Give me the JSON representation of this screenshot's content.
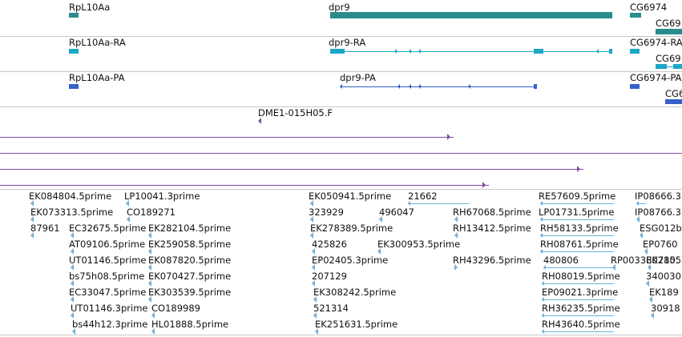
{
  "colors": {
    "gene": "#2a8c8c",
    "mrna": "#1ba7c6",
    "protein": "#3561c9",
    "clone": "#7d4ea6",
    "est": "#6fb0d6",
    "divider": "#c7c7c7"
  },
  "tracks": {
    "gene": [
      {
        "label": "RpL10Aa",
        "kind": "gene"
      },
      {
        "label": "dpr9",
        "kind": "gene"
      },
      {
        "label": "CG6974",
        "kind": "gene"
      },
      {
        "label": "CG69",
        "kind": "gene"
      }
    ],
    "mrna": [
      {
        "label": "RpL10Aa-RA",
        "kind": "mrna"
      },
      {
        "label": "dpr9-RA",
        "kind": "mrna"
      },
      {
        "label": "CG6974-RA",
        "kind": "mrna"
      },
      {
        "label": "CG69",
        "kind": "mrna"
      }
    ],
    "protein": [
      {
        "label": "RpL10Aa-PA",
        "kind": "protein"
      },
      {
        "label": "dpr9-PA",
        "kind": "protein"
      },
      {
        "label": "CG6974-PA",
        "kind": "protein"
      },
      {
        "label": "CG6",
        "kind": "protein"
      }
    ],
    "clone": [
      {
        "label": "DME1-015H05.F",
        "kind": "clone"
      }
    ],
    "est": [
      {
        "label": "EK084804.5prime"
      },
      {
        "label": "LP10041.3prime"
      },
      {
        "label": "EK073313.5prime"
      },
      {
        "label": "CO189271"
      },
      {
        "label": "87961"
      },
      {
        "label": "EC32675.5prime"
      },
      {
        "label": "EK282104.5prime"
      },
      {
        "label": "AT09106.5prime"
      },
      {
        "label": "EK259058.5prime"
      },
      {
        "label": "UT01146.5prime"
      },
      {
        "label": "EK087820.5prime"
      },
      {
        "label": "bs75h08.5prime"
      },
      {
        "label": "EK070427.5prime"
      },
      {
        "label": "EC33047.5prime"
      },
      {
        "label": "EK303539.5prime"
      },
      {
        "label": "UT01146.3prime"
      },
      {
        "label": "CO189989"
      },
      {
        "label": "bs44h12.3prime"
      },
      {
        "label": "HL01888.5prime"
      },
      {
        "label": "EK050941.5prime"
      },
      {
        "label": "21662"
      },
      {
        "label": "323929"
      },
      {
        "label": "496047"
      },
      {
        "label": "RH67068.5prime"
      },
      {
        "label": "EK278389.5prime"
      },
      {
        "label": "RH13412.5prime"
      },
      {
        "label": "425826"
      },
      {
        "label": "EK300953.5prime"
      },
      {
        "label": "EP02405.3prime"
      },
      {
        "label": "RH43296.5prime"
      },
      {
        "label": "207129"
      },
      {
        "label": "EK308242.5prime"
      },
      {
        "label": "521314"
      },
      {
        "label": "EK251631.5prime"
      },
      {
        "label": "RE57609.5prime"
      },
      {
        "label": "LP01731.5prime"
      },
      {
        "label": "RH58133.5prime"
      },
      {
        "label": "RH08761.5prime"
      },
      {
        "label": "480806"
      },
      {
        "label": "RP003380780."
      },
      {
        "label": "RH08019.5prime"
      },
      {
        "label": "EP09021.3prime"
      },
      {
        "label": "RH36235.5prime"
      },
      {
        "label": "RH43640.5prime"
      },
      {
        "label": "IP08666.3"
      },
      {
        "label": "IP08766.3"
      },
      {
        "label": "ESG012b"
      },
      {
        "label": "EP0760"
      },
      {
        "label": "EK2155"
      },
      {
        "label": "340030"
      },
      {
        "label": "EK189"
      },
      {
        "label": "30918"
      }
    ]
  }
}
